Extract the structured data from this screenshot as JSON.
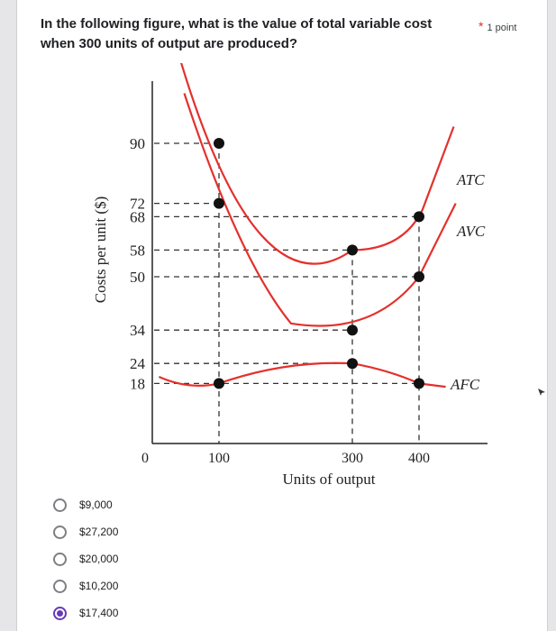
{
  "question": {
    "text": "In the following figure, what is the value of total variable cost when 300 units of output are produced?",
    "required_mark": "*",
    "points": "1 point"
  },
  "figure": {
    "ylabel": "Costs per unit ($)",
    "xlabel": "Units of output",
    "y_ticks": [
      "90",
      "72",
      "68",
      "58",
      "50",
      "34",
      "24",
      "18"
    ],
    "x_ticks": [
      "0",
      "100",
      "300",
      "400"
    ],
    "curve_labels": {
      "atc": "ATC",
      "avc": "AVC",
      "afc": "AFC"
    }
  },
  "chart_data": {
    "type": "line",
    "xlabel": "Units of output",
    "ylabel": "Costs per unit ($)",
    "series": [
      {
        "name": "ATC",
        "x": [
          100,
          300,
          400
        ],
        "y": [
          90,
          58,
          68
        ]
      },
      {
        "name": "AVC",
        "x": [
          100,
          300,
          400
        ],
        "y": [
          72,
          34,
          50
        ]
      },
      {
        "name": "AFC",
        "x": [
          100,
          300,
          400
        ],
        "y": [
          18,
          24,
          18
        ]
      }
    ],
    "marked_points": [
      {
        "x": 100,
        "y": 90
      },
      {
        "x": 100,
        "y": 72
      },
      {
        "x": 100,
        "y": 18
      },
      {
        "x": 300,
        "y": 58
      },
      {
        "x": 300,
        "y": 34
      },
      {
        "x": 300,
        "y": 24
      },
      {
        "x": 400,
        "y": 68
      },
      {
        "x": 400,
        "y": 50
      },
      {
        "x": 400,
        "y": 18
      }
    ]
  },
  "options": [
    {
      "label": "$9,000",
      "selected": false
    },
    {
      "label": "$27,200",
      "selected": false
    },
    {
      "label": "$20,000",
      "selected": false
    },
    {
      "label": "$10,200",
      "selected": false
    },
    {
      "label": "$17,400",
      "selected": true
    }
  ],
  "colors": {
    "curve": "#e3312d",
    "accent": "#673ab7",
    "text": "#202124"
  },
  "icons": {
    "cursor": "cursor-icon"
  }
}
